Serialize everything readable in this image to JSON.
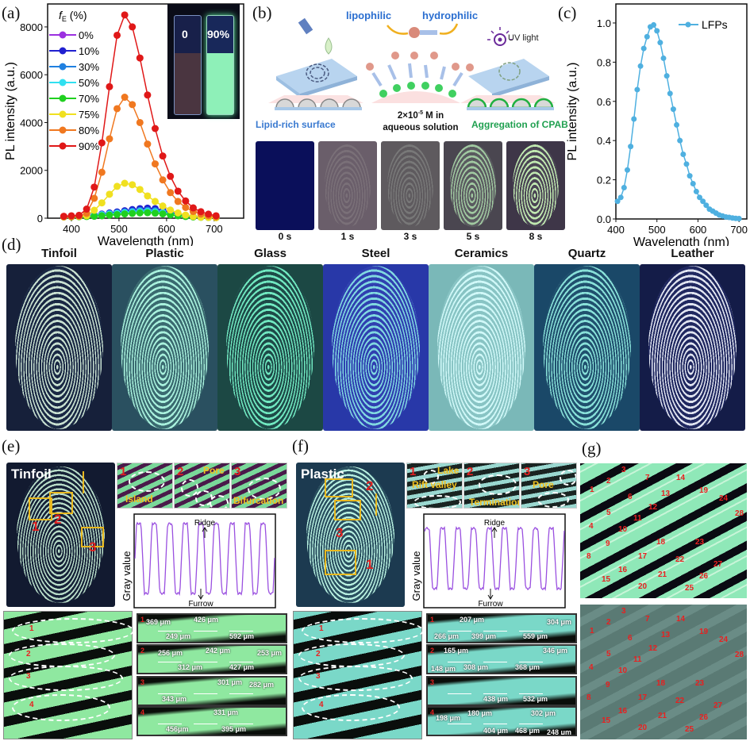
{
  "panels": {
    "a": "(a)",
    "b": "(b)",
    "c": "(c)",
    "d": "(d)",
    "e": "(e)",
    "f": "(f)",
    "g": "(g)"
  },
  "chart_data": [
    {
      "id": "a",
      "type": "line",
      "xlabel": "Wavelength (nm)",
      "ylabel": "PL intensity (a.u.)",
      "legend_title": "fE (%)",
      "legend_title_main": "f",
      "legend_title_sub": "E",
      "legend_title_unit": " (%)",
      "legend_position": "top-left",
      "xlim": [
        350,
        762
      ],
      "ylim": [
        0,
        8960
      ],
      "xticks": [
        "400",
        "500",
        "600",
        "700"
      ],
      "xtick_values": [
        400,
        500,
        600,
        700
      ],
      "yticks": [
        "0",
        "2000",
        "4000",
        "6000",
        "8000"
      ],
      "ytick_values": [
        0,
        2000,
        4000,
        6000,
        8000
      ],
      "x": [
        384,
        400,
        416,
        432,
        448,
        464,
        480,
        496,
        512,
        528,
        544,
        560,
        576,
        592,
        608,
        624,
        640,
        656,
        672,
        688,
        704
      ],
      "series": [
        {
          "name": "0%",
          "color": "#9b30e0",
          "values": [
            60,
            70,
            80,
            100,
            130,
            170,
            210,
            250,
            300,
            340,
            380,
            400,
            380,
            320,
            240,
            160,
            100,
            70,
            50,
            40,
            30
          ]
        },
        {
          "name": "10%",
          "color": "#2020d0",
          "values": [
            60,
            70,
            80,
            100,
            130,
            170,
            220,
            260,
            310,
            360,
            400,
            420,
            400,
            330,
            250,
            170,
            110,
            70,
            50,
            40,
            30
          ]
        },
        {
          "name": "30%",
          "color": "#2080e0",
          "values": [
            60,
            70,
            80,
            95,
            120,
            150,
            190,
            220,
            260,
            290,
            320,
            330,
            310,
            260,
            200,
            140,
            90,
            60,
            45,
            35,
            30
          ]
        },
        {
          "name": "50%",
          "color": "#30e0f0",
          "values": [
            60,
            65,
            75,
            90,
            110,
            140,
            170,
            200,
            230,
            250,
            270,
            280,
            260,
            220,
            170,
            120,
            80,
            55,
            40,
            35,
            30
          ]
        },
        {
          "name": "70%",
          "color": "#20d020",
          "values": [
            50,
            55,
            60,
            70,
            80,
            100,
            130,
            150,
            180,
            200,
            220,
            230,
            210,
            180,
            140,
            100,
            70,
            50,
            40,
            30,
            25
          ]
        },
        {
          "name": "75%",
          "color": "#f0e020",
          "values": [
            50,
            60,
            70,
            100,
            330,
            640,
            1000,
            1330,
            1460,
            1400,
            1200,
            930,
            700,
            510,
            340,
            220,
            130,
            70,
            40,
            30,
            20
          ]
        },
        {
          "name": "80%",
          "color": "#f07820",
          "values": [
            60,
            70,
            90,
            200,
            830,
            1920,
            3320,
            4580,
            5060,
            4750,
            4000,
            3100,
            2270,
            1600,
            1070,
            700,
            450,
            280,
            170,
            100,
            60
          ]
        },
        {
          "name": "90%",
          "color": "#e01818",
          "values": [
            80,
            100,
            120,
            380,
            1300,
            3150,
            5500,
            7650,
            8500,
            8000,
            6700,
            5150,
            3750,
            2600,
            1750,
            1130,
            720,
            430,
            270,
            170,
            100
          ]
        }
      ],
      "inset": {
        "left_label": "0",
        "right_label": "90%"
      }
    },
    {
      "id": "c",
      "type": "line",
      "xlabel": "Wavelength (nm)",
      "ylabel": "PL intensity (a.u.)",
      "legend_position": "top-right",
      "xlim": [
        400,
        719
      ],
      "ylim": [
        0,
        1.097
      ],
      "xticks": [
        "400",
        "500",
        "600",
        "700"
      ],
      "xtick_values": [
        400,
        500,
        600,
        700
      ],
      "yticks": [
        "0.0",
        "0.2",
        "0.4",
        "0.6",
        "0.8",
        "1.0"
      ],
      "ytick_values": [
        0,
        0.2,
        0.4,
        0.6,
        0.8,
        1.0
      ],
      "x": [
        404,
        412,
        420,
        428,
        436,
        444,
        452,
        460,
        468,
        476,
        484,
        492,
        500,
        508,
        516,
        524,
        532,
        540,
        548,
        556,
        564,
        572,
        580,
        588,
        596,
        604,
        612,
        620,
        628,
        636,
        644,
        652,
        660,
        668,
        676,
        684,
        692,
        700
      ],
      "series": [
        {
          "name": "LFPs",
          "color": "#4fb0e0",
          "values": [
            0.09,
            0.11,
            0.16,
            0.25,
            0.37,
            0.51,
            0.66,
            0.78,
            0.87,
            0.93,
            0.98,
            0.99,
            0.96,
            0.9,
            0.82,
            0.73,
            0.64,
            0.56,
            0.48,
            0.4,
            0.33,
            0.28,
            0.22,
            0.18,
            0.14,
            0.11,
            0.09,
            0.07,
            0.05,
            0.04,
            0.03,
            0.02,
            0.015,
            0.01,
            0.008,
            0.005,
            0.003,
            0.002
          ]
        }
      ]
    }
  ],
  "panel_b": {
    "lipophilic": "lipophilic",
    "hydrophilic": "hydrophilic",
    "uv_light": "UV light",
    "concentration_line1": "2×10",
    "concentration_exp": "-5",
    "concentration_line1_tail": " M in",
    "concentration_line2": "aqueous solution",
    "left_caption": "Lipid-rich surface",
    "right_caption": "Aggregation of CPAB",
    "times": [
      "0 s",
      "1 s",
      "3 s",
      "5 s",
      "8 s"
    ]
  },
  "panel_d": {
    "surfaces": [
      "Tinfoil",
      "Plastic",
      "Glass",
      "Steel",
      "Ceramics",
      "Quartz",
      "Leather"
    ]
  },
  "panel_e": {
    "title": "Tinfoil",
    "box_numbers": [
      "1",
      "2",
      "3"
    ],
    "insets": [
      {
        "num": "1",
        "label": "Island"
      },
      {
        "num": "2",
        "label": "Pore"
      },
      {
        "num": "3",
        "label": "Bifurcation"
      }
    ],
    "plot": {
      "ylabel": "Gray value",
      "top": "Ridge",
      "bottom": "Furrow"
    },
    "strip_numbers": [
      "1",
      "2",
      "3",
      "4"
    ],
    "strips": [
      [
        "369 μm",
        "426 μm",
        "249 μm",
        "592 μm"
      ],
      [
        "256 μm",
        "242 μm",
        "253 μm",
        "312 μm",
        "427 μm"
      ],
      [
        "301 μm",
        "282 μm",
        "343 μm"
      ],
      [
        "331 μm",
        "456μm",
        "395 μm"
      ]
    ]
  },
  "panel_f": {
    "title": "Plastic",
    "box_numbers": [
      "2",
      "3",
      "1"
    ],
    "insets": [
      {
        "num": "1",
        "label": "Lake",
        "label2": "Rift valley"
      },
      {
        "num": "2",
        "label": "Termination"
      },
      {
        "num": "3",
        "label": "Pore"
      }
    ],
    "plot": {
      "ylabel": "Gray value",
      "top": "Ridge",
      "bottom": "Furrow"
    },
    "strip_numbers": [
      "1",
      "2",
      "3",
      "4"
    ],
    "strips": [
      [
        "207 μm",
        "304 μm",
        "266 μm",
        "399 μm",
        "559 μm"
      ],
      [
        "165 μm",
        "346 μm",
        "148 μm",
        "308 μm",
        "368 μm"
      ],
      [
        "438 μm",
        "532 μm"
      ],
      [
        "198 μm",
        "180 μm",
        "302 μm",
        "404 μm",
        "468 μm",
        "248 μm"
      ]
    ]
  },
  "panel_g": {
    "labels": [
      "1",
      "2",
      "3",
      "4",
      "5",
      "6",
      "7",
      "8",
      "9",
      "10",
      "11",
      "12",
      "13",
      "14",
      "15",
      "16",
      "17",
      "18",
      "19",
      "20",
      "21",
      "22",
      "23",
      "24",
      "25",
      "26",
      "27",
      "28"
    ]
  }
}
